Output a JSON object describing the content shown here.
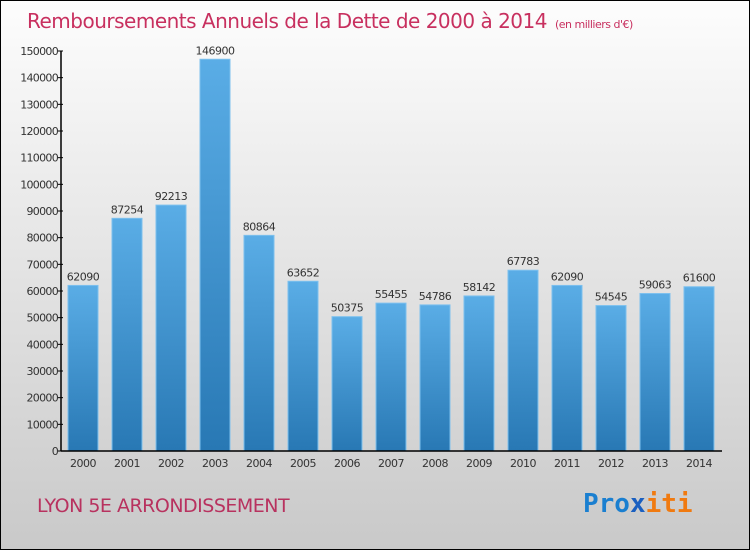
{
  "chart_data": {
    "type": "bar",
    "title": "Remboursements Annuels de la Dette de 2000 à 2014",
    "unit": "(en milliers d'€)",
    "categories": [
      "2000",
      "2001",
      "2002",
      "2003",
      "2004",
      "2005",
      "2006",
      "2007",
      "2008",
      "2009",
      "2010",
      "2011",
      "2012",
      "2013",
      "2014"
    ],
    "values": [
      62090,
      87254,
      92213,
      146900,
      80864,
      63652,
      50375,
      55455,
      54786,
      58142,
      67783,
      62090,
      54545,
      59063,
      61600
    ],
    "ylim": [
      0,
      150000
    ],
    "yticks": [
      0,
      10000,
      20000,
      30000,
      40000,
      50000,
      60000,
      70000,
      80000,
      90000,
      100000,
      110000,
      120000,
      130000,
      140000,
      150000
    ],
    "bar_color": "#4a9fdc"
  },
  "footer": {
    "place": "LYON 5E  ARRONDISSEMENT",
    "logo": [
      "Pro",
      "x",
      "iti"
    ]
  }
}
